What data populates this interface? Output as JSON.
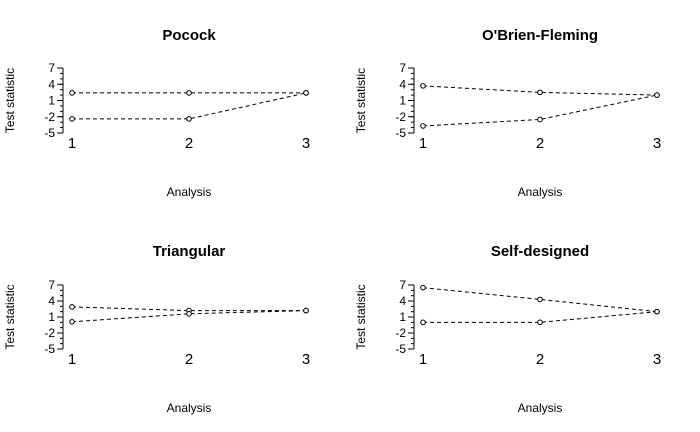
{
  "chart_data": [
    {
      "type": "line",
      "title": "Pocock",
      "xlabel": "Analysis",
      "ylabel": "Test statistic",
      "x": [
        1,
        2,
        3
      ],
      "yticks": [
        7,
        4,
        1,
        -2,
        -5
      ],
      "xticks": [
        1,
        2,
        3
      ],
      "ylim": [
        -5,
        7
      ],
      "series": [
        {
          "values": [
            2.4,
            2.4,
            2.4
          ]
        },
        {
          "values": [
            -2.4,
            -2.4,
            2.4
          ]
        }
      ]
    },
    {
      "type": "line",
      "title": "O'Brien-Fleming",
      "xlabel": "Analysis",
      "ylabel": "Test statistic",
      "x": [
        1,
        2,
        3
      ],
      "yticks": [
        7,
        4,
        1,
        -2,
        -5
      ],
      "xticks": [
        1,
        2,
        3
      ],
      "ylim": [
        -5,
        7
      ],
      "series": [
        {
          "values": [
            3.7,
            2.5,
            2.0
          ]
        },
        {
          "values": [
            -3.7,
            -2.5,
            2.0
          ]
        }
      ]
    },
    {
      "type": "line",
      "title": "Triangular",
      "xlabel": "Analysis",
      "ylabel": "Test statistic",
      "x": [
        1,
        2,
        3
      ],
      "yticks": [
        7,
        4,
        1,
        -2,
        -5
      ],
      "xticks": [
        1,
        2,
        3
      ],
      "ylim": [
        -5,
        7
      ],
      "series": [
        {
          "values": [
            2.9,
            2.2,
            2.2
          ]
        },
        {
          "values": [
            0.1,
            1.6,
            2.2
          ]
        }
      ]
    },
    {
      "type": "line",
      "title": "Self-designed",
      "xlabel": "Analysis",
      "ylabel": "Test statistic",
      "x": [
        1,
        2,
        3
      ],
      "yticks": [
        7,
        4,
        1,
        -2,
        -5
      ],
      "xticks": [
        1,
        2,
        3
      ],
      "ylim": [
        -5,
        7
      ],
      "series": [
        {
          "values": [
            6.5,
            4.3,
            2.0
          ]
        },
        {
          "values": [
            0.0,
            0.0,
            2.0
          ]
        }
      ]
    }
  ]
}
